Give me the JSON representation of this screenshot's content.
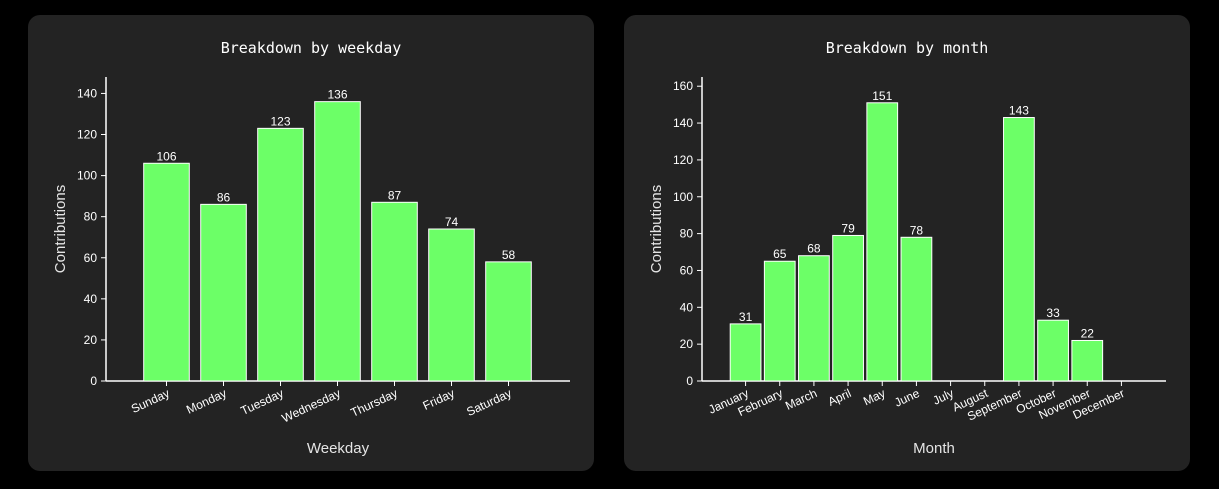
{
  "colors": {
    "bar": "#6cff67",
    "bar_edge": "#ffffff",
    "axis": "#ffffff",
    "panel": "#232323",
    "background": "#000000"
  },
  "chart_data": [
    {
      "type": "bar",
      "title": "Breakdown by weekday",
      "xlabel": "Weekday",
      "ylabel": "Contributions",
      "categories": [
        "Sunday",
        "Monday",
        "Tuesday",
        "Wednesday",
        "Thursday",
        "Friday",
        "Saturday"
      ],
      "values": [
        106,
        86,
        123,
        136,
        87,
        74,
        58
      ],
      "value_labels": [
        "106",
        "86",
        "123",
        "136",
        "87",
        "74",
        "58"
      ],
      "ylim": [
        0,
        148
      ],
      "yticks": [
        0,
        20,
        40,
        60,
        80,
        100,
        120,
        140
      ],
      "ytick_labels": [
        "0",
        "20",
        "40",
        "60",
        "80",
        "100",
        "120",
        "140"
      ],
      "grid": false,
      "legend": false
    },
    {
      "type": "bar",
      "title": "Breakdown by month",
      "xlabel": "Month",
      "ylabel": "Contributions",
      "categories": [
        "January",
        "February",
        "March",
        "April",
        "May",
        "June",
        "July",
        "August",
        "September",
        "October",
        "November",
        "December"
      ],
      "values": [
        31,
        65,
        68,
        79,
        151,
        78,
        0,
        0,
        143,
        33,
        22,
        0
      ],
      "value_labels": [
        "31",
        "65",
        "68",
        "79",
        "151",
        "78",
        "",
        "",
        "143",
        "33",
        "22",
        ""
      ],
      "ylim": [
        0,
        165
      ],
      "yticks": [
        0,
        20,
        40,
        60,
        80,
        100,
        120,
        140,
        160
      ],
      "ytick_labels": [
        "0",
        "20",
        "40",
        "60",
        "80",
        "100",
        "120",
        "140",
        "160"
      ],
      "grid": false,
      "legend": false
    }
  ]
}
